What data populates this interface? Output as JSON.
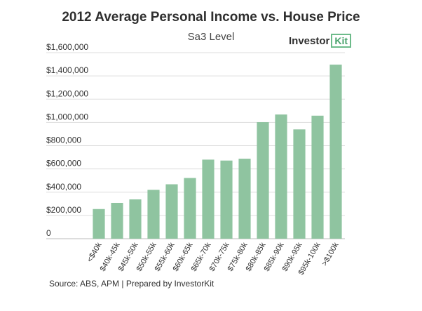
{
  "header": {
    "title": "2012 Average Personal Income vs. House Price",
    "subtitle": "Sa3 Level"
  },
  "logo": {
    "text": "Investor",
    "box_text": "Kit"
  },
  "footer": {
    "source": "Source: ABS, APM | Prepared by InvestorKit"
  },
  "colors": {
    "bar": "#8fc4a0",
    "grid": "#dddddd",
    "logo_accent": "#4aa36d"
  },
  "chart_data": {
    "type": "bar",
    "title": "2012 Average Personal Income vs. House Price",
    "subtitle": "Sa3 Level",
    "xlabel": "",
    "ylabel": "",
    "grid": true,
    "ylim": [
      0,
      1600000
    ],
    "yticks": [
      0,
      200000,
      400000,
      600000,
      800000,
      1000000,
      1200000,
      1400000,
      1600000
    ],
    "ytick_labels": [
      "0",
      "$200,000",
      "$400,000",
      "$600,000",
      "$800,000",
      "$1,000,000",
      "$1,200,000",
      "$1,400,000",
      "$1,600,000"
    ],
    "categories": [
      "<$40k",
      "$40k-45k",
      "$45k-50k",
      "$50k-55k",
      "$55k-60k",
      "$60k-65k",
      "$65k-70k",
      "$70k-75k",
      "$75k-80k",
      "$80k-85k",
      "$85k-90k",
      "$90k-95k",
      "$95k-100k",
      ">$100k"
    ],
    "values": [
      255000,
      308000,
      338000,
      420000,
      468000,
      522000,
      680000,
      672000,
      688000,
      1002000,
      1068000,
      940000,
      1058000,
      1497000
    ]
  }
}
